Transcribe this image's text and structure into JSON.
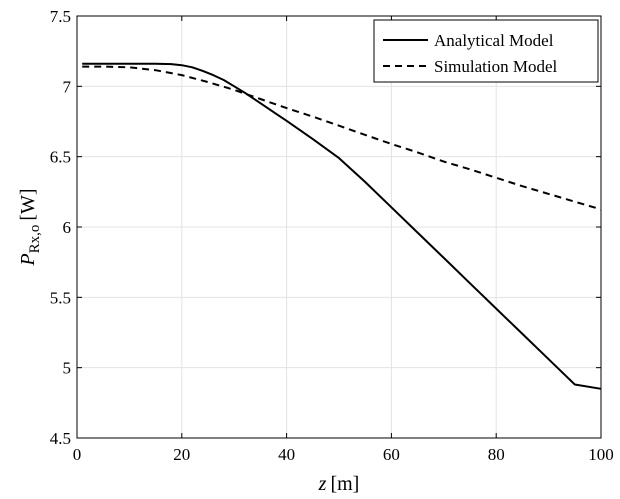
{
  "chart_data": {
    "type": "line",
    "title": "",
    "xlabel": {
      "var": "z",
      "unit": "[m]"
    },
    "ylabel": {
      "var": "P",
      "sub": "Rx,o",
      "unit": "[W]"
    },
    "xlim": [
      0,
      100
    ],
    "ylim": [
      4.5,
      7.5
    ],
    "xticks": [
      0,
      20,
      40,
      60,
      80,
      100
    ],
    "yticks": [
      4.5,
      5,
      5.5,
      6,
      6.5,
      7,
      7.5
    ],
    "xtick_labels": [
      "0",
      "20",
      "40",
      "60",
      "80",
      "100"
    ],
    "ytick_labels": [
      "4.5",
      "5",
      "5.5",
      "6",
      "6.5",
      "7",
      "7.5"
    ],
    "grid": true,
    "legend_position": "top-right",
    "series": [
      {
        "name": "Analytical Model",
        "style": "solid",
        "color": "#000000",
        "x": [
          1,
          5,
          10,
          15,
          18,
          20,
          22,
          24,
          26,
          28,
          30,
          32,
          34,
          36,
          38,
          40,
          45,
          50,
          55,
          60,
          65,
          70,
          75,
          80,
          85,
          90,
          95,
          100
        ],
        "y": [
          7.16,
          7.16,
          7.16,
          7.16,
          7.158,
          7.15,
          7.135,
          7.11,
          7.08,
          7.045,
          7.0,
          6.955,
          6.905,
          6.855,
          6.805,
          6.755,
          6.625,
          6.49,
          6.32,
          6.14,
          5.96,
          5.78,
          5.6,
          5.42,
          5.24,
          5.06,
          4.88,
          4.85
        ]
      },
      {
        "name": "Simulation Model",
        "style": "dashed",
        "color": "#000000",
        "x": [
          1,
          5,
          10,
          15,
          20,
          25,
          30,
          35,
          40,
          45,
          50,
          55,
          60,
          65,
          70,
          75,
          80,
          85,
          90,
          95,
          100
        ],
        "y": [
          7.14,
          7.14,
          7.135,
          7.115,
          7.08,
          7.03,
          6.975,
          6.91,
          6.845,
          6.785,
          6.72,
          6.655,
          6.59,
          6.53,
          6.465,
          6.41,
          6.35,
          6.29,
          6.235,
          6.18,
          6.125
        ]
      }
    ]
  }
}
